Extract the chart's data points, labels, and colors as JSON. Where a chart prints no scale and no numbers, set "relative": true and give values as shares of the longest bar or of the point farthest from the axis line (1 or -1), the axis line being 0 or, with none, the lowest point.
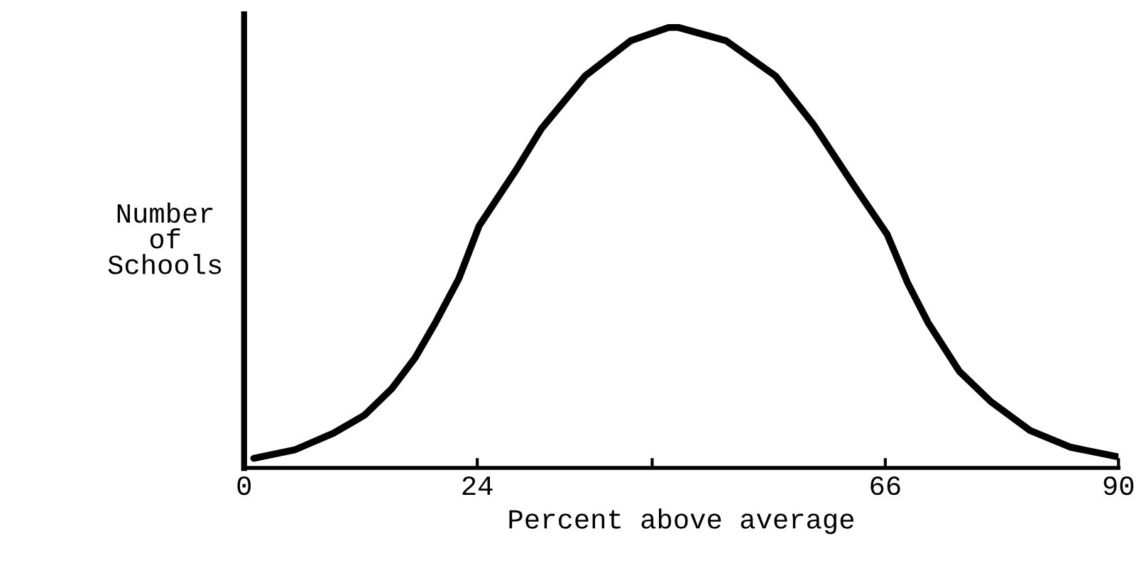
{
  "chart_data": {
    "type": "line",
    "relative": true,
    "xlabel": "Percent above average",
    "ylabel": "Number\nof\nSchools",
    "xlim": [
      0,
      90
    ],
    "xticks": [
      0,
      24,
      {
        "value": 42,
        "label": null
      },
      66,
      90
    ],
    "tick_labels": "x",
    "grid": false,
    "legend": false,
    "marker": "none",
    "line_style": "solid",
    "series": [
      {
        "color": "#000000",
        "x": [
          1.0,
          5.2,
          9.2,
          12.4,
          15.2,
          17.6,
          19.7,
          22.1,
          24.2,
          28.1,
          30.6,
          35.1,
          39.8,
          43.7,
          44.7,
          49.6,
          54.7,
          58.6,
          62.5,
          66.2,
          68.3,
          70.4,
          73.6,
          76.9,
          80.9,
          85.1,
          90
        ],
        "values": [
          0.022,
          0.041,
          0.079,
          0.12,
          0.18,
          0.25,
          0.33,
          0.43,
          0.55,
          0.68,
          0.77,
          0.89,
          0.97,
          1.0,
          1.0,
          0.97,
          0.89,
          0.78,
          0.65,
          0.53,
          0.42,
          0.33,
          0.22,
          0.15,
          0.085,
          0.047,
          0.025
        ]
      }
    ]
  }
}
